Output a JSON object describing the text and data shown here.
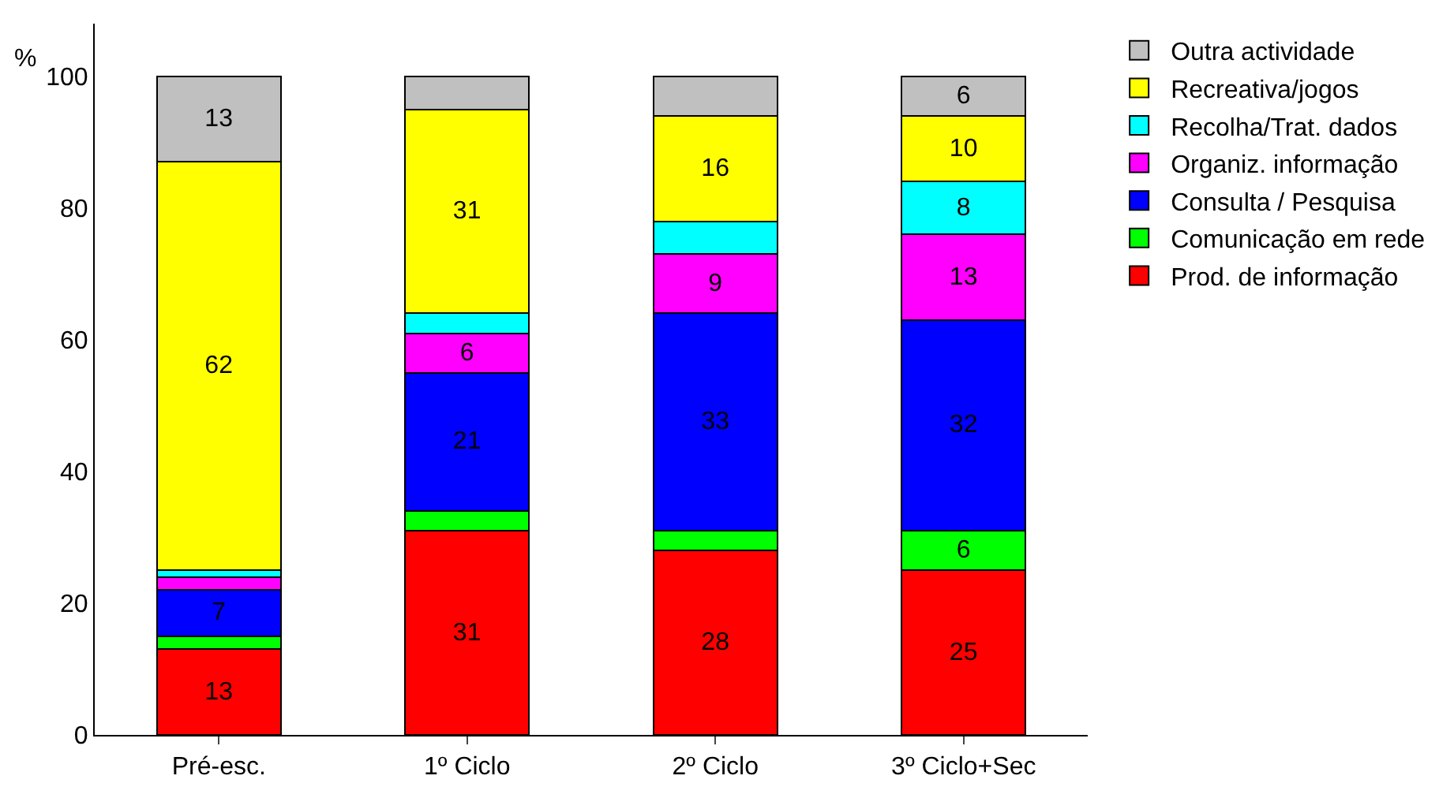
{
  "chart_data": {
    "type": "bar",
    "stacked": true,
    "ylabel": "%",
    "categories": [
      "Pré-esc.",
      "1º Ciclo",
      "2º Ciclo",
      "3º Ciclo+Sec"
    ],
    "ylim": [
      0,
      108
    ],
    "yticks": [
      0,
      20,
      40,
      60,
      80,
      100
    ],
    "legend": "right",
    "series": [
      {
        "name": "Prod. de informação",
        "color": "#ff0000",
        "values": [
          13,
          31,
          28,
          25
        ],
        "value_labels": [
          "13",
          "31",
          "28",
          "25"
        ]
      },
      {
        "name": "Comunicação em rede",
        "color": "#00ff00",
        "values": [
          2,
          3,
          3,
          6
        ],
        "value_labels": [
          null,
          null,
          null,
          "6"
        ]
      },
      {
        "name": "Consulta / Pesquisa",
        "color": "#0000ff",
        "values": [
          7,
          21,
          33,
          32
        ],
        "value_labels": [
          "7",
          "21",
          "33",
          "32"
        ]
      },
      {
        "name": "Organiz. informação",
        "color": "#ff00ff",
        "values": [
          2,
          6,
          9,
          13
        ],
        "value_labels": [
          null,
          "6",
          "9",
          "13"
        ]
      },
      {
        "name": "Recolha/Trat. dados",
        "color": "#00ffff",
        "values": [
          1,
          3,
          5,
          8
        ],
        "value_labels": [
          null,
          null,
          null,
          "8"
        ]
      },
      {
        "name": "Recreativa/jogos",
        "color": "#ffff00",
        "values": [
          62,
          31,
          16,
          10
        ],
        "value_labels": [
          "62",
          "31",
          "16",
          "10"
        ]
      },
      {
        "name": "Outra actividade",
        "color": "#c0c0c0",
        "values": [
          13,
          5,
          6,
          6
        ],
        "value_labels": [
          "13",
          null,
          null,
          "6"
        ]
      }
    ]
  }
}
